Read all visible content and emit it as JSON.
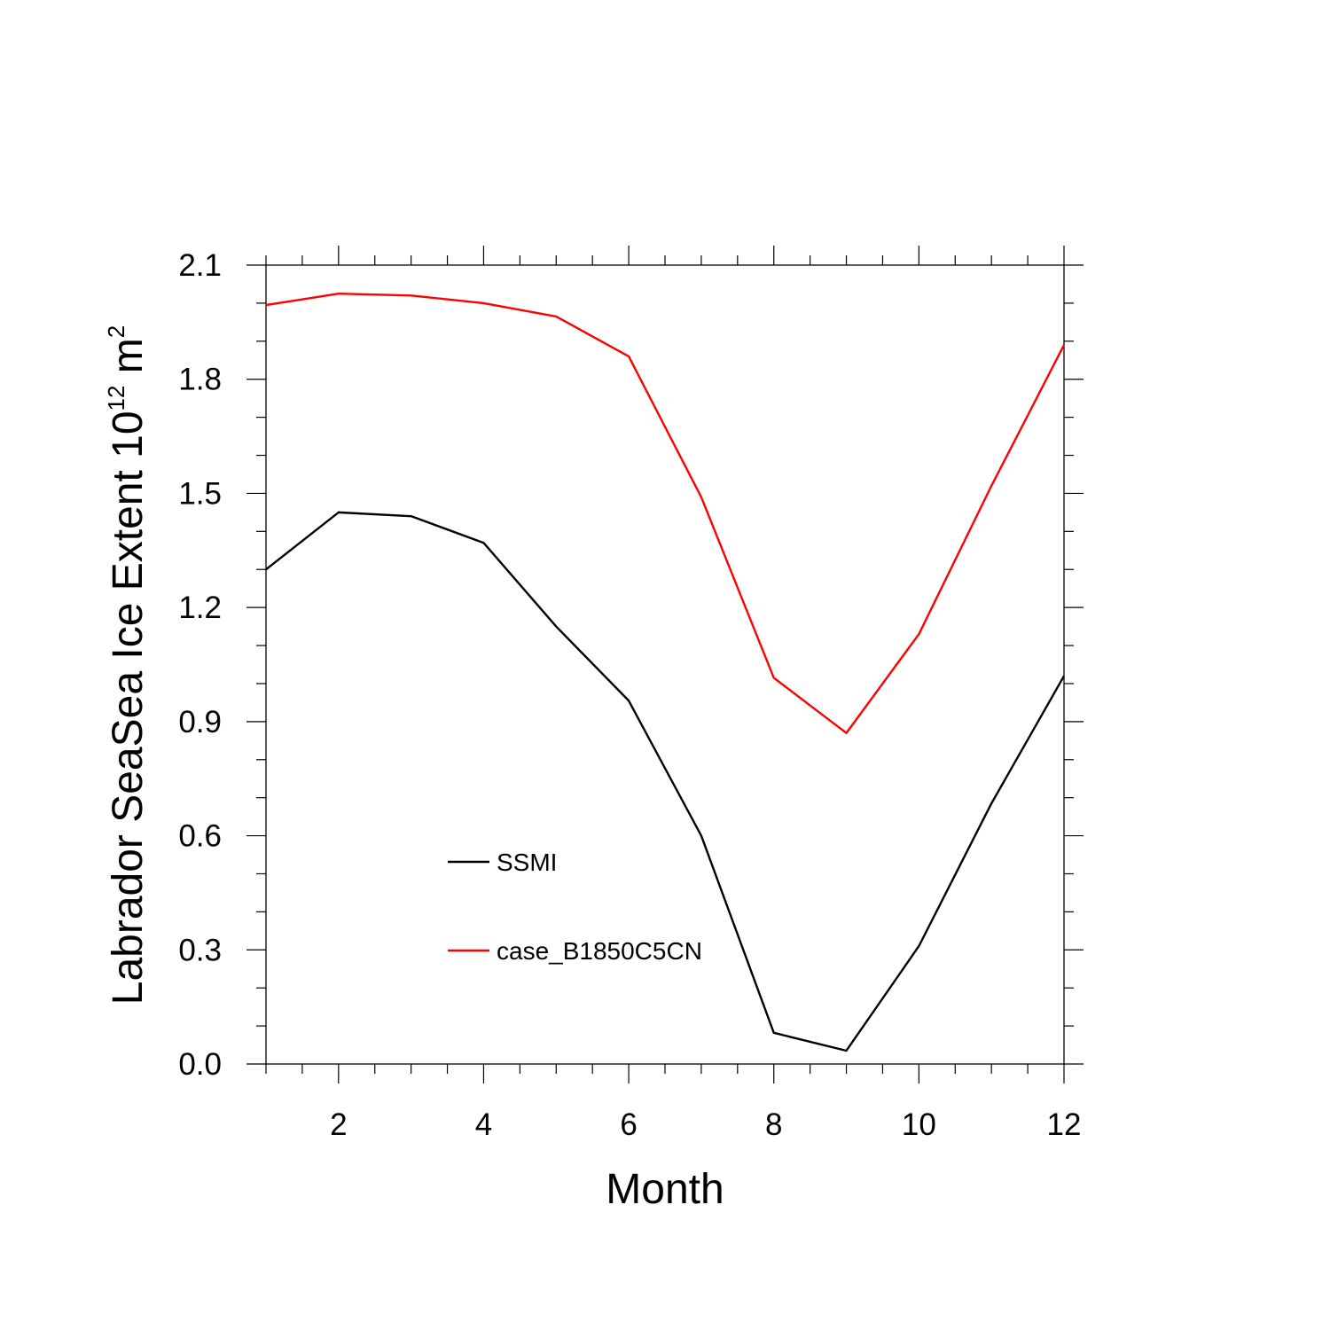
{
  "chart_data": {
    "type": "line",
    "title": "",
    "xlabel": "Month",
    "ylabel": {
      "text": "Labrador SeaSea Ice Extent 10",
      "superscript_1": "12",
      "unit": " m",
      "superscript_2": "2"
    },
    "xlim": [
      1,
      12
    ],
    "ylim": [
      0,
      2.1
    ],
    "x_ticks": [
      2,
      4,
      6,
      8,
      10,
      12
    ],
    "x_tick_labels": [
      "2",
      "4",
      "6",
      "8",
      "10",
      "12"
    ],
    "y_ticks": [
      0,
      0.3,
      0.6,
      0.9,
      1.2,
      1.5,
      1.8,
      2.1
    ],
    "y_tick_labels": [
      "0.0",
      "0.3",
      "0.6",
      "0.9",
      "1.2",
      "1.5",
      "1.8",
      "2.1"
    ],
    "x": [
      1,
      2,
      3,
      4,
      5,
      6,
      7,
      8,
      9,
      10,
      11,
      12
    ],
    "series": [
      {
        "name": "SSMI",
        "color": "#000000",
        "values": [
          1.3,
          1.45,
          1.44,
          1.37,
          1.15,
          0.955,
          0.6,
          0.082,
          0.035,
          0.31,
          0.685,
          1.02
        ]
      },
      {
        "name": "case_B1850C5CN",
        "color": "#ff0000",
        "values": [
          1.995,
          2.025,
          2.02,
          2.0,
          1.965,
          1.86,
          1.49,
          1.015,
          0.87,
          1.13,
          1.52,
          1.89
        ]
      }
    ],
    "legend": "inside-lower-left",
    "grid": false
  }
}
